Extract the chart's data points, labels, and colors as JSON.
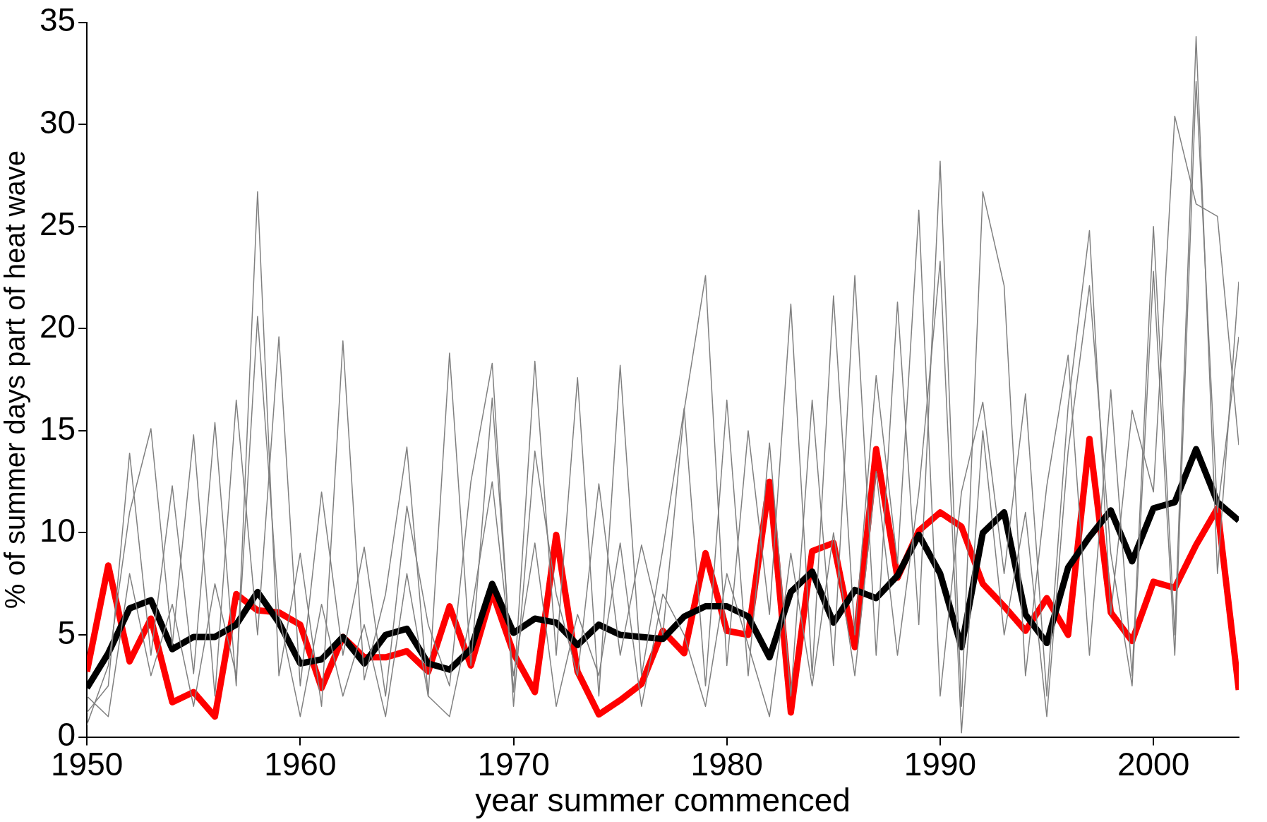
{
  "chart_data": {
    "type": "line",
    "xlabel": "year summer commenced",
    "ylabel": "% of summer days part of heat wave",
    "x": [
      1950,
      1951,
      1952,
      1953,
      1954,
      1955,
      1956,
      1957,
      1958,
      1959,
      1960,
      1961,
      1962,
      1963,
      1964,
      1965,
      1966,
      1967,
      1968,
      1969,
      1970,
      1971,
      1972,
      1973,
      1974,
      1975,
      1976,
      1977,
      1978,
      1979,
      1980,
      1981,
      1982,
      1983,
      1984,
      1985,
      1986,
      1987,
      1988,
      1989,
      1990,
      1991,
      1992,
      1993,
      1994,
      1995,
      1996,
      1997,
      1998,
      1999,
      2000,
      2001,
      2002,
      2003,
      2004
    ],
    "xlim": [
      1950,
      2004
    ],
    "xticks": [
      1950,
      1960,
      1970,
      1980,
      1990,
      2000
    ],
    "ylim": [
      0,
      35
    ],
    "yticks": [
      0,
      5,
      10,
      15,
      20,
      25,
      30,
      35
    ],
    "grid": false,
    "legend": false,
    "marker": "none",
    "line_style": "solid",
    "series": [
      {
        "color": "#808080",
        "values": [
          1.2,
          2.5,
          13.9,
          4.0,
          12.3,
          3.1,
          15.4,
          2.5,
          26.7,
          3.0,
          9.0,
          1.5,
          19.4,
          2.8,
          7.0,
          14.2,
          2.0,
          18.8,
          3.5,
          16.6,
          2.2,
          18.4,
          4.0,
          17.6,
          2.0,
          18.2,
          3.0,
          9.2,
          16.1,
          2.5,
          16.5,
          3.0,
          14.4,
          2.0,
          16.5,
          3.5,
          22.6,
          4.0,
          21.3,
          5.5,
          28.2,
          1.5,
          26.7,
          22.1,
          3.0,
          12.3,
          18.7,
          4.0,
          17.0,
          3.0,
          25.0,
          5.0,
          34.3,
          8.0,
          22.3
        ]
      },
      {
        "color": "#808080",
        "values": [
          0.6,
          3.5,
          11.0,
          15.1,
          4.5,
          14.8,
          2.0,
          16.5,
          5.0,
          19.6,
          2.5,
          12.0,
          4.0,
          9.3,
          2.0,
          11.3,
          5.5,
          2.5,
          12.5,
          18.3,
          1.5,
          14.0,
          7.0,
          3.0,
          12.4,
          4.0,
          9.4,
          5.0,
          16.0,
          22.6,
          3.5,
          15.0,
          6.0,
          21.2,
          3.0,
          21.6,
          5.0,
          17.7,
          8.5,
          25.8,
          2.0,
          12.0,
          16.4,
          8.0,
          16.8,
          2.0,
          16.2,
          24.8,
          6.0,
          16.0,
          12.0,
          30.4,
          26.1,
          25.5,
          14.3
        ]
      },
      {
        "color": "#808080",
        "values": [
          2.0,
          1.0,
          8.0,
          3.0,
          6.5,
          1.5,
          7.5,
          3.0,
          20.6,
          6.0,
          1.0,
          6.5,
          2.0,
          5.5,
          1.0,
          8.0,
          2.0,
          1.0,
          6.0,
          12.5,
          3.0,
          9.5,
          1.5,
          6.0,
          3.0,
          9.5,
          1.5,
          7.0,
          5.0,
          1.5,
          8.0,
          4.5,
          1.0,
          9.0,
          2.5,
          10.0,
          3.0,
          13.0,
          4.0,
          12.0,
          23.3,
          0.2,
          15.0,
          5.0,
          11.0,
          1.0,
          14.0,
          22.1,
          9.0,
          2.5,
          22.8,
          4.0,
          32.1,
          11.0,
          19.6
        ]
      },
      {
        "color": "#000000",
        "values": [
          2.4,
          4.1,
          6.3,
          6.7,
          4.3,
          4.9,
          4.9,
          5.5,
          7.1,
          5.6,
          3.6,
          3.8,
          4.9,
          3.6,
          5.0,
          5.3,
          3.6,
          3.3,
          4.3,
          7.5,
          5.1,
          5.8,
          5.6,
          4.5,
          5.5,
          5.0,
          4.9,
          4.8,
          5.9,
          6.4,
          6.4,
          5.9,
          3.9,
          7.1,
          8.1,
          5.6,
          7.2,
          6.8,
          7.9,
          9.9,
          8.0,
          4.4,
          10.0,
          11.0,
          6.0,
          4.6,
          8.3,
          9.8,
          11.1,
          8.6,
          11.2,
          11.5,
          14.1,
          11.5,
          10.6
        ]
      },
      {
        "color": "#ff0000",
        "values": [
          3.2,
          8.4,
          3.7,
          5.8,
          1.7,
          2.2,
          1.0,
          7.0,
          6.2,
          6.1,
          5.5,
          2.4,
          4.9,
          3.9,
          3.9,
          4.2,
          3.2,
          6.4,
          3.5,
          7.1,
          4.1,
          2.2,
          9.9,
          3.2,
          1.1,
          1.8,
          2.6,
          5.2,
          4.1,
          9.0,
          5.2,
          5.0,
          12.5,
          1.2,
          9.1,
          9.5,
          4.4,
          14.1,
          7.8,
          10.1,
          11.0,
          10.3,
          7.5,
          6.4,
          5.2,
          6.8,
          5.0,
          14.6,
          6.1,
          4.7,
          7.6,
          7.3,
          9.4,
          11.2,
          2.3
        ]
      }
    ]
  }
}
